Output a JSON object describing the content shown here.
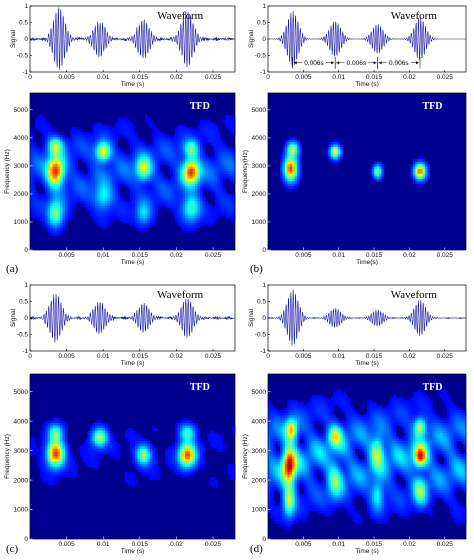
{
  "panels": [
    {
      "label": "(a)",
      "waveform": {
        "title": "Waveform",
        "xlabel": "Time (s)",
        "ylabel": "Signal",
        "xticks": [
          "0",
          "0.005",
          "0.01",
          "0.015",
          "0.02",
          "0.025"
        ],
        "yticks": [
          "1",
          "0.5",
          "0",
          "-0.5",
          "-1"
        ],
        "bursts": [
          {
            "center": 0.004,
            "amp": 0.95
          },
          {
            "center": 0.0095,
            "amp": 0.55
          },
          {
            "center": 0.0155,
            "amp": 0.6
          },
          {
            "center": 0.0215,
            "amp": 0.85
          }
        ],
        "noise": 0.12,
        "annotations": []
      },
      "tfd": {
        "title": "TFD",
        "xlabel": "Time (s)",
        "ylabel": "Frequency (Hz)",
        "xticks": [
          "0.005",
          "0.01",
          "0.015",
          "0.02",
          "0.025"
        ],
        "yticks": [
          "0",
          "1000",
          "2000",
          "3000",
          "4000",
          "5000"
        ],
        "blobs": [
          {
            "t": 0.0035,
            "f": 2800,
            "st": 0.0011,
            "sf": 500,
            "a": 1.0
          },
          {
            "t": 0.0035,
            "f": 1300,
            "st": 0.001,
            "sf": 450,
            "a": 0.55
          },
          {
            "t": 0.0035,
            "f": 3700,
            "st": 0.001,
            "sf": 300,
            "a": 0.55
          },
          {
            "t": 0.01,
            "f": 3500,
            "st": 0.001,
            "sf": 330,
            "a": 0.7
          },
          {
            "t": 0.01,
            "f": 1900,
            "st": 0.0012,
            "sf": 450,
            "a": 0.35
          },
          {
            "t": 0.0155,
            "f": 2900,
            "st": 0.001,
            "sf": 400,
            "a": 0.6
          },
          {
            "t": 0.0155,
            "f": 1300,
            "st": 0.001,
            "sf": 400,
            "a": 0.3
          },
          {
            "t": 0.022,
            "f": 2800,
            "st": 0.0011,
            "sf": 420,
            "a": 0.95
          },
          {
            "t": 0.022,
            "f": 1500,
            "st": 0.0012,
            "sf": 450,
            "a": 0.45
          },
          {
            "t": 0.022,
            "f": 3600,
            "st": 0.001,
            "sf": 300,
            "a": 0.45
          }
        ],
        "background": 0.18
      }
    },
    {
      "label": "(b)",
      "waveform": {
        "title": "Waveform",
        "xlabel": "Time (s)",
        "ylabel": "Signal",
        "xticks": [
          "0",
          "0.005",
          "0.01",
          "0.015",
          "0.02",
          "0.025"
        ],
        "yticks": [
          "1",
          "0.5",
          "0",
          "-0.5",
          "-1"
        ],
        "bursts": [
          {
            "center": 0.0035,
            "amp": 0.85
          },
          {
            "center": 0.0095,
            "amp": 0.55
          },
          {
            "center": 0.0155,
            "amp": 0.45
          },
          {
            "center": 0.0215,
            "amp": 0.65
          }
        ],
        "noise": 0.0,
        "annotations": [
          {
            "from": 0.0035,
            "to": 0.0095,
            "text": "0.006s"
          },
          {
            "from": 0.0095,
            "to": 0.0155,
            "text": "0.006s"
          },
          {
            "from": 0.0155,
            "to": 0.0215,
            "text": "0.006s"
          }
        ]
      },
      "tfd": {
        "title": "TFD",
        "xlabel": "Time(s)",
        "ylabel": "Frequency(Hz)",
        "xticks": [
          "0.005",
          "0.01",
          "0.015",
          "0.02",
          "0.025"
        ],
        "yticks": [
          "0",
          "1000",
          "2000",
          "3000",
          "4000",
          "5000"
        ],
        "blobs": [
          {
            "t": 0.0032,
            "f": 2900,
            "st": 0.0009,
            "sf": 420,
            "a": 1.0
          },
          {
            "t": 0.0035,
            "f": 3600,
            "st": 0.0008,
            "sf": 250,
            "a": 0.6
          },
          {
            "t": 0.0095,
            "f": 3500,
            "st": 0.0007,
            "sf": 230,
            "a": 0.75
          },
          {
            "t": 0.0155,
            "f": 2800,
            "st": 0.0006,
            "sf": 230,
            "a": 0.6
          },
          {
            "t": 0.0215,
            "f": 2800,
            "st": 0.0008,
            "sf": 270,
            "a": 0.95
          }
        ],
        "background": 0.0
      }
    },
    {
      "label": "(c)",
      "waveform": {
        "title": "Waveform",
        "xlabel": "Time (s)",
        "ylabel": "Signal",
        "xticks": [
          "0",
          "0.005",
          "0.01",
          "0.015",
          "0.02",
          "0.025"
        ],
        "yticks": [
          "1",
          "0.5",
          "0",
          "-0.5",
          "-1"
        ],
        "bursts": [
          {
            "center": 0.0035,
            "amp": 0.75
          },
          {
            "center": 0.0095,
            "amp": 0.5
          },
          {
            "center": 0.0155,
            "amp": 0.45
          },
          {
            "center": 0.0215,
            "amp": 0.6
          }
        ],
        "noise": 0.1,
        "annotations": []
      },
      "tfd": {
        "title": "TFD",
        "xlabel": "Time (s)",
        "ylabel": "Frequency (Hz)",
        "xticks": [
          "0.005",
          "0.01",
          "0.015",
          "0.02",
          "0.025"
        ],
        "yticks": [
          "0",
          "1000",
          "2000",
          "3000",
          "4000",
          "5000"
        ],
        "blobs": [
          {
            "t": 0.0035,
            "f": 2900,
            "st": 0.0011,
            "sf": 420,
            "a": 1.0
          },
          {
            "t": 0.0035,
            "f": 3600,
            "st": 0.0009,
            "sf": 280,
            "a": 0.5
          },
          {
            "t": 0.0095,
            "f": 3450,
            "st": 0.001,
            "sf": 300,
            "a": 0.6
          },
          {
            "t": 0.0155,
            "f": 2850,
            "st": 0.001,
            "sf": 320,
            "a": 0.55
          },
          {
            "t": 0.0215,
            "f": 2850,
            "st": 0.0011,
            "sf": 380,
            "a": 0.95
          },
          {
            "t": 0.0215,
            "f": 3600,
            "st": 0.001,
            "sf": 280,
            "a": 0.45
          }
        ],
        "background": 0.05
      }
    },
    {
      "label": "(d)",
      "waveform": {
        "title": "Waveform",
        "xlabel": "Time (s)",
        "ylabel": "Signal",
        "xticks": [
          "0",
          "0.005",
          "0.01",
          "0.015",
          "0.02",
          "0.025"
        ],
        "yticks": [
          "1",
          "0.5",
          "0",
          "-0.5",
          "-1"
        ],
        "bursts": [
          {
            "center": 0.0035,
            "amp": 0.85
          },
          {
            "center": 0.0095,
            "amp": 0.3
          },
          {
            "center": 0.0155,
            "amp": 0.25
          },
          {
            "center": 0.0215,
            "amp": 0.55
          }
        ],
        "noise": 0.03,
        "annotations": []
      },
      "tfd": {
        "title": "TFD",
        "xlabel": "Time (s)",
        "ylabel": "Frequency (Hz)",
        "xticks": [
          "0.005",
          "0.01",
          "0.015",
          "0.02",
          "0.025"
        ],
        "yticks": [
          "0",
          "1000",
          "2000",
          "3000",
          "4000",
          "5000"
        ],
        "blobs": [
          {
            "t": 0.003,
            "f": 2500,
            "st": 0.0009,
            "sf": 600,
            "a": 1.0
          },
          {
            "t": 0.0033,
            "f": 3700,
            "st": 0.0008,
            "sf": 350,
            "a": 0.75
          },
          {
            "t": 0.003,
            "f": 1300,
            "st": 0.0008,
            "sf": 500,
            "a": 0.6
          },
          {
            "t": 0.0095,
            "f": 3500,
            "st": 0.0009,
            "sf": 350,
            "a": 0.55
          },
          {
            "t": 0.0095,
            "f": 2000,
            "st": 0.001,
            "sf": 600,
            "a": 0.4
          },
          {
            "t": 0.0155,
            "f": 3000,
            "st": 0.0009,
            "sf": 500,
            "a": 0.5
          },
          {
            "t": 0.0155,
            "f": 1500,
            "st": 0.0009,
            "sf": 500,
            "a": 0.35
          },
          {
            "t": 0.0215,
            "f": 2800,
            "st": 0.0009,
            "sf": 350,
            "a": 0.9
          },
          {
            "t": 0.0215,
            "f": 3800,
            "st": 0.0008,
            "sf": 300,
            "a": 0.6
          },
          {
            "t": 0.0215,
            "f": 1600,
            "st": 0.0009,
            "sf": 450,
            "a": 0.45
          }
        ],
        "background": 0.32
      }
    }
  ],
  "chart_data": [
    {
      "type": "line",
      "panel": "(a)",
      "title": "Waveform",
      "xlabel": "Time (s)",
      "ylabel": "Signal",
      "xlim": [
        0,
        0.028
      ],
      "ylim": [
        -1,
        1
      ]
    },
    {
      "type": "heatmap",
      "panel": "(a)",
      "title": "TFD",
      "xlabel": "Time (s)",
      "ylabel": "Frequency (Hz)",
      "xlim": [
        0,
        0.028
      ],
      "ylim": [
        0,
        5600
      ]
    },
    {
      "type": "line",
      "panel": "(b)",
      "title": "Waveform",
      "xlabel": "Time (s)",
      "ylabel": "Signal",
      "xlim": [
        0,
        0.028
      ],
      "ylim": [
        -1,
        1
      ]
    },
    {
      "type": "heatmap",
      "panel": "(b)",
      "title": "TFD",
      "xlabel": "Time(s)",
      "ylabel": "Frequency(Hz)",
      "xlim": [
        0,
        0.028
      ],
      "ylim": [
        0,
        5600
      ]
    },
    {
      "type": "line",
      "panel": "(c)",
      "title": "Waveform",
      "xlabel": "Time (s)",
      "ylabel": "Signal",
      "xlim": [
        0,
        0.028
      ],
      "ylim": [
        -1,
        1
      ]
    },
    {
      "type": "heatmap",
      "panel": "(c)",
      "title": "TFD",
      "xlabel": "Time (s)",
      "ylabel": "Frequency (Hz)",
      "xlim": [
        0,
        0.028
      ],
      "ylim": [
        0,
        5600
      ]
    },
    {
      "type": "line",
      "panel": "(d)",
      "title": "Waveform",
      "xlabel": "Time (s)",
      "ylabel": "Signal",
      "xlim": [
        0,
        0.028
      ],
      "ylim": [
        -1,
        1
      ]
    },
    {
      "type": "heatmap",
      "panel": "(d)",
      "title": "TFD",
      "xlabel": "Time (s)",
      "ylabel": "Frequency (Hz)",
      "xlim": [
        0,
        0.028
      ],
      "ylim": [
        0,
        5600
      ]
    }
  ],
  "colors": {
    "line": "#1a1aa8",
    "heat_low": "#00008f",
    "heat_high": "#800000"
  }
}
